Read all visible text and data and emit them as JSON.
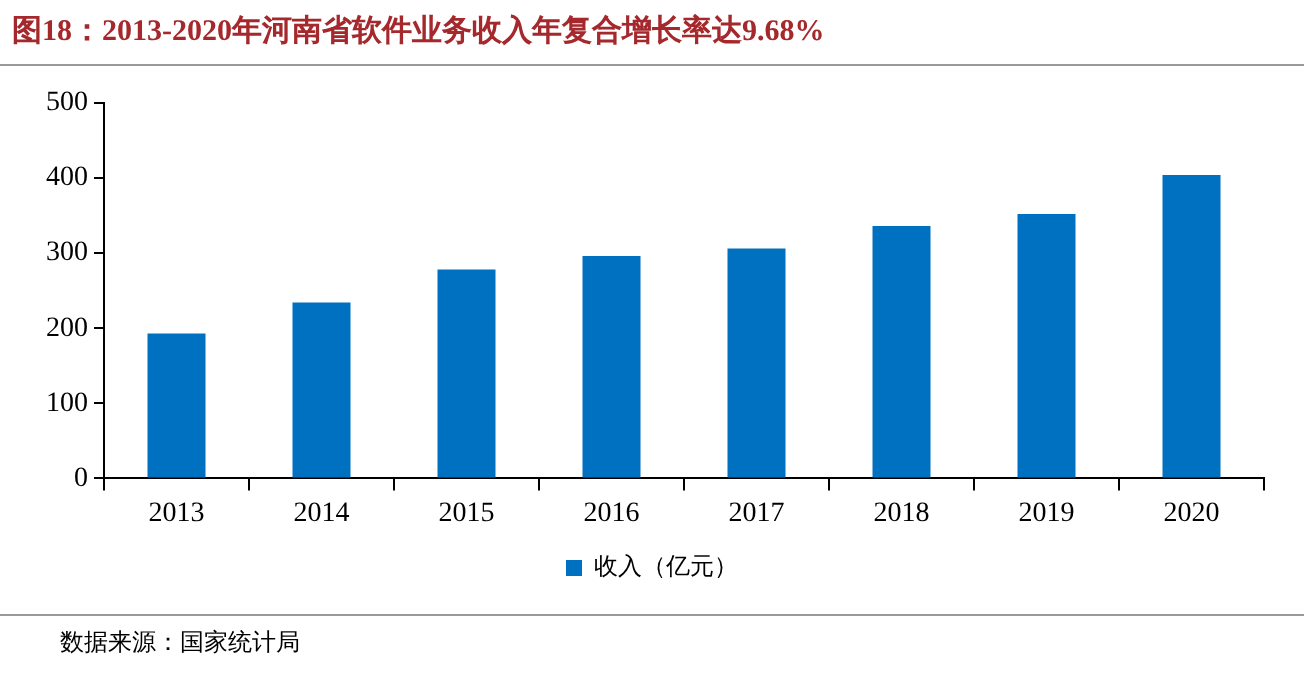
{
  "chart_data": {
    "type": "bar",
    "title": "图18：2013-2020年河南省软件业务收入年复合增长率达9.68%",
    "categories": [
      "2013",
      "2014",
      "2015",
      "2016",
      "2017",
      "2018",
      "2019",
      "2020"
    ],
    "series": [
      {
        "name": "收入（亿元）",
        "color": "#0070c0",
        "values": [
          193,
          234,
          278,
          296,
          306,
          336,
          352,
          404
        ]
      }
    ],
    "ylim": [
      0,
      500
    ],
    "yticks": [
      0,
      100,
      200,
      300,
      400,
      500
    ],
    "grid": false,
    "legend": "bottom",
    "annotations": [
      "数据来源：国家统计局"
    ]
  }
}
